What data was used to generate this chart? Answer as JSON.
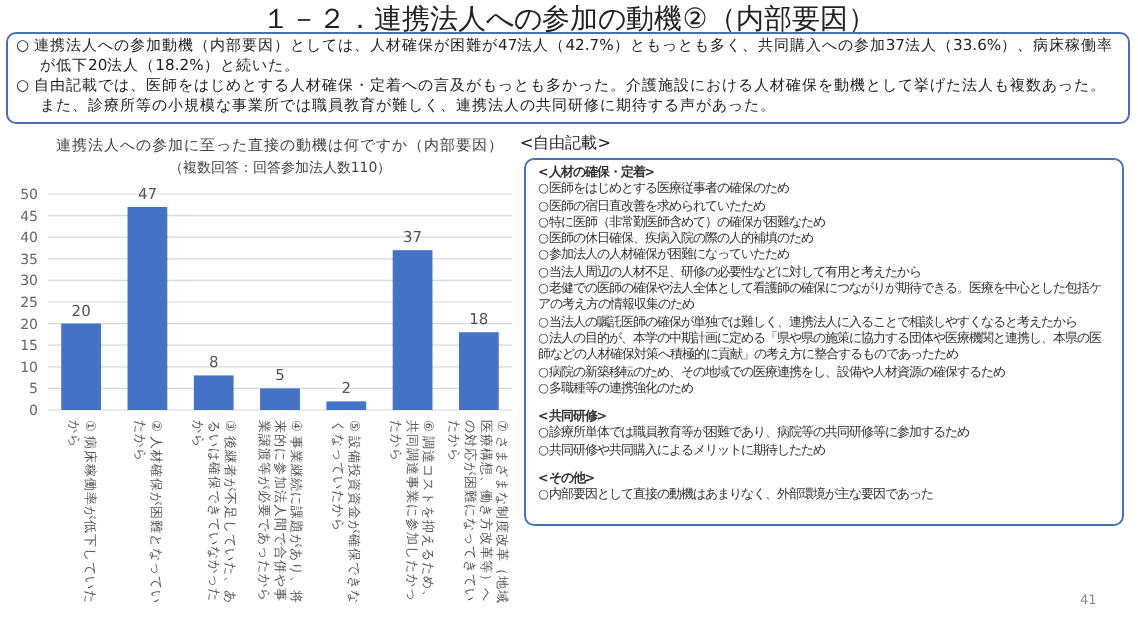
{
  "chart_data": {
    "type": "bar",
    "title": "連携法人への参加に至った直接の動機は何ですか（内部要因）",
    "subtitle": "（複数回答：回答参加法人数110）",
    "categories": [
      "① 病床稼働率が低下していたから",
      "② 人材確保が困難となっていたから",
      "③ 後継者が不足していた、あるいは確保できていなかったから",
      "④ 事業継続に課題があり、将来的に参加法人間で合併や事業譲渡等が必要であったから",
      "⑤ 設備投資資金が確保できなくなっていたから",
      "⑥ 調達コストを抑えるため、共同調達事業に参加したかったから",
      "⑦ さまざまな制度改革（地域医療構想、働き方改革等）への対応が困難になってきていたから"
    ],
    "values": [
      20,
      47,
      8,
      5,
      2,
      37,
      18
    ],
    "color": "#4472c4",
    "ylim": [
      0,
      50
    ],
    "yticks": [
      0,
      5,
      10,
      15,
      20,
      25,
      30,
      35,
      40,
      45,
      50
    ],
    "grid": "y",
    "data_labels": true,
    "annotations": [
      "１－２．連携法人への参加の動機②（内部要因）",
      "○ 連携法人への参加動機（内部要因）としては、人材確保が困難が47法人（42.7%）ともっとも多く、共同購入への参加37法人（33.6%）、病床稼働率が低下20法人（18.2%）と続いた。",
      "○ 自由記載では、医師をはじめとする人材確保・定着への言及がもっとも多かった。介護施設における人材確保を動機として挙げた法人も複数あった。また、診療所等の小規模な事業所では職員教育が難しく、連携法人の共同研修に期待する声があった。",
      "<自由記載>",
      "<人材の確保・定着>",
      "○医師をはじめとする医療従事者の確保のため",
      "○医師の宿日直改善を求められていたため",
      "○特に医師（非常勤医師含めて）の確保が困難なため",
      "○医師の休日確保、疾病入院の際の人的補填のため",
      "○参加法人の人材確保が困難になっていたため",
      "○当法人周辺の人材不足、研修の必要性などに対して有用と考えたから",
      "○老健での医師の確保や法人全体として看護師の確保につながりが期待できる。医療を中心とした包括ケアの考え方の情報収集のため",
      "○当法人の嘱託医師の確保が単独では難しく、連携法人に入ることで相談しやすくなると考えたから",
      "○法人の目的が、本学の中期計画に定める「県や県の施策に協力する団体や医療機関と連携し、本県の医師などの人材確保対策へ積極的に貢献」の考え方に整合するものであったため",
      "○病院の新築移転のため、その地域での医療連携をし、設備や人材資源の確保するため",
      "○多職種等の連携強化のため",
      "<共同研修>",
      "○診療所単体では職員教育等が困難であり、病院等の共同研修等に参加するため",
      "○共同研修や共同購入によるメリットに期待したため",
      "<その他>",
      "○内部要因として直接の動機はあまりなく、外部環境が主な要因であった",
      "41"
    ]
  }
}
